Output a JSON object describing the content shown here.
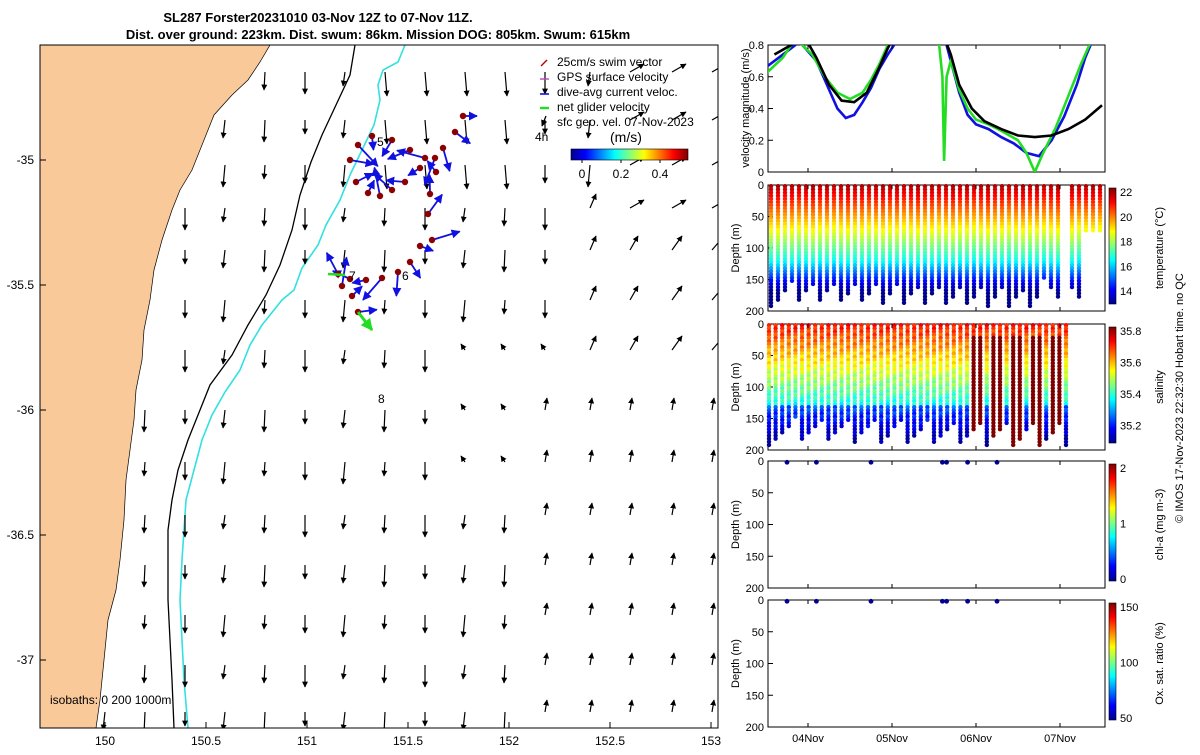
{
  "map": {
    "title_line1": "SL287 Forster20231010 03-Nov 12Z to 07-Nov 11Z.",
    "title_line2": "Dist. over ground: 223km. Dist. swum: 86km. Mission DOG: 805km. Swum: 615km",
    "x_ticks": [
      "150",
      "150.5",
      "151",
      "151.5",
      "152",
      "152.5",
      "153"
    ],
    "y_ticks": [
      "-35",
      "-35.5",
      "-36",
      "-36.5",
      "-37"
    ],
    "legend": [
      "25cm/s swim vector",
      "GPS surface velocity",
      "dive-avg current veloc.",
      "net glider velocity",
      "sfc geo. vel. 07-Nov-2023"
    ],
    "legend_tag": "4h",
    "colorbar_title": "(m/s)",
    "colorbar_ticks": [
      "0",
      "0.2",
      "0.4"
    ],
    "isobaths_label": "isobaths: 0   200  1000m",
    "day_labels": [
      "5",
      "7",
      "6",
      "8"
    ],
    "colors": {
      "land": "#f9c99a",
      "isobath_200": "#000000",
      "isobath_1000": "#33e0e0",
      "dive_avg": "#1010e0",
      "net": "#22dd22",
      "fix": "#8b0000"
    }
  },
  "chart_data": [
    {
      "type": "line",
      "title": "",
      "ylabel": "velocity magnitude (m/s)",
      "ylim": [
        0,
        0.8
      ],
      "y_ticks": [
        "0",
        "0.2",
        "0.4",
        "0.6",
        "0.8"
      ],
      "x_ticks": [
        "04Nov",
        "05Nov",
        "06Nov",
        "07Nov"
      ],
      "x_range_days": [
        3.5,
        7.5
      ],
      "series": [
        {
          "name": "dive-avg current",
          "color": "#1010e0",
          "x": [
            3.5,
            3.75,
            3.9,
            4.1,
            4.25,
            4.35,
            4.45,
            4.55,
            4.65,
            4.75,
            4.85,
            4.95,
            5.05,
            5.6,
            5.65,
            5.7,
            5.8,
            5.9,
            6.0,
            6.15,
            6.3,
            6.45,
            6.6,
            6.75,
            6.9,
            7.05,
            7.2,
            7.3,
            7.38,
            7.45
          ],
          "values": [
            0.66,
            0.76,
            0.82,
            0.7,
            0.52,
            0.4,
            0.34,
            0.36,
            0.44,
            0.53,
            0.65,
            0.74,
            0.82,
            0.82,
            0.8,
            0.7,
            0.5,
            0.36,
            0.3,
            0.27,
            0.22,
            0.18,
            0.12,
            0.1,
            0.2,
            0.35,
            0.55,
            0.72,
            0.82,
            0.86
          ]
        },
        {
          "name": "net glider",
          "color": "#22dd22",
          "x": [
            3.5,
            3.7,
            3.85,
            4.05,
            4.2,
            4.35,
            4.5,
            4.65,
            4.75,
            4.85,
            4.95,
            5.05,
            5.55,
            5.6,
            5.62,
            5.65,
            5.7,
            5.8,
            5.9,
            6.0,
            6.15,
            6.3,
            6.5,
            6.6,
            6.7,
            6.8,
            6.95,
            7.1,
            7.25,
            7.35,
            7.45
          ],
          "values": [
            0.62,
            0.72,
            0.84,
            0.74,
            0.6,
            0.5,
            0.46,
            0.5,
            0.58,
            0.68,
            0.8,
            0.86,
            0.86,
            0.6,
            0.07,
            0.6,
            0.7,
            0.52,
            0.4,
            0.33,
            0.3,
            0.26,
            0.2,
            0.12,
            0.0,
            0.12,
            0.28,
            0.48,
            0.68,
            0.8,
            0.86
          ]
        },
        {
          "name": "GPS surface",
          "color": "#000000",
          "x": [
            3.6,
            3.8,
            3.95,
            4.1,
            4.25,
            4.4,
            4.55,
            4.7,
            4.85,
            4.95,
            5.05,
            5.6,
            5.7,
            5.8,
            5.95,
            6.1,
            6.3,
            6.5,
            6.7,
            6.9,
            7.1,
            7.3,
            7.5
          ],
          "values": [
            0.74,
            0.8,
            0.86,
            0.72,
            0.55,
            0.45,
            0.44,
            0.5,
            0.66,
            0.78,
            0.88,
            0.88,
            0.74,
            0.55,
            0.4,
            0.32,
            0.27,
            0.23,
            0.22,
            0.23,
            0.27,
            0.33,
            0.42
          ]
        }
      ]
    },
    {
      "type": "heatmap",
      "ylabel": "Depth (m)",
      "colorbar_label": "temperature (°C)",
      "y_ticks": [
        "0",
        "50",
        "100",
        "150",
        "200"
      ],
      "colorbar_ticks": [
        "22",
        "20",
        "18",
        "16",
        "14"
      ],
      "vmin": 13,
      "vmax": 22.5,
      "values": [
        13,
        22.5
      ]
    },
    {
      "type": "heatmap",
      "ylabel": "Depth (m)",
      "colorbar_label": "salinity",
      "y_ticks": [
        "0",
        "50",
        "100",
        "150",
        "200"
      ],
      "colorbar_ticks": [
        "35.8",
        "35.6",
        "35.4",
        "35.2"
      ],
      "vmin": 35.1,
      "vmax": 35.85,
      "values": [
        35.1,
        35.85
      ]
    },
    {
      "type": "scatter",
      "ylabel": "Depth (m)",
      "colorbar_label": "chl-a (mg m-3)",
      "y_ticks": [
        "0",
        "50",
        "100",
        "150",
        "200"
      ],
      "colorbar_ticks": [
        "2",
        "1",
        "0"
      ],
      "x_days": [
        3.75,
        4.1,
        4.75,
        5.6,
        5.65,
        5.9,
        6.25
      ],
      "depths": [
        2,
        2,
        2,
        2,
        2,
        2,
        2
      ],
      "values": [
        0.1,
        0.1,
        0.1,
        0.1,
        0.1,
        0.1,
        0.1
      ]
    },
    {
      "type": "scatter",
      "ylabel": "Depth (m)",
      "colorbar_label": "Ox. sat. ratio (%)",
      "y_ticks": [
        "0",
        "50",
        "100",
        "150",
        "200"
      ],
      "colorbar_ticks": [
        "150",
        "100",
        "50"
      ],
      "x_days": [
        3.75,
        4.1,
        4.75,
        5.6,
        5.65,
        5.9,
        6.25
      ],
      "depths": [
        2,
        2,
        2,
        2,
        2,
        2,
        2
      ],
      "values": [
        30,
        30,
        30,
        30,
        30,
        30,
        30
      ]
    }
  ],
  "footer": {
    "side_note": "© IMOS 17-Nov-2023 22:32:30 Hobart time. no QC"
  }
}
